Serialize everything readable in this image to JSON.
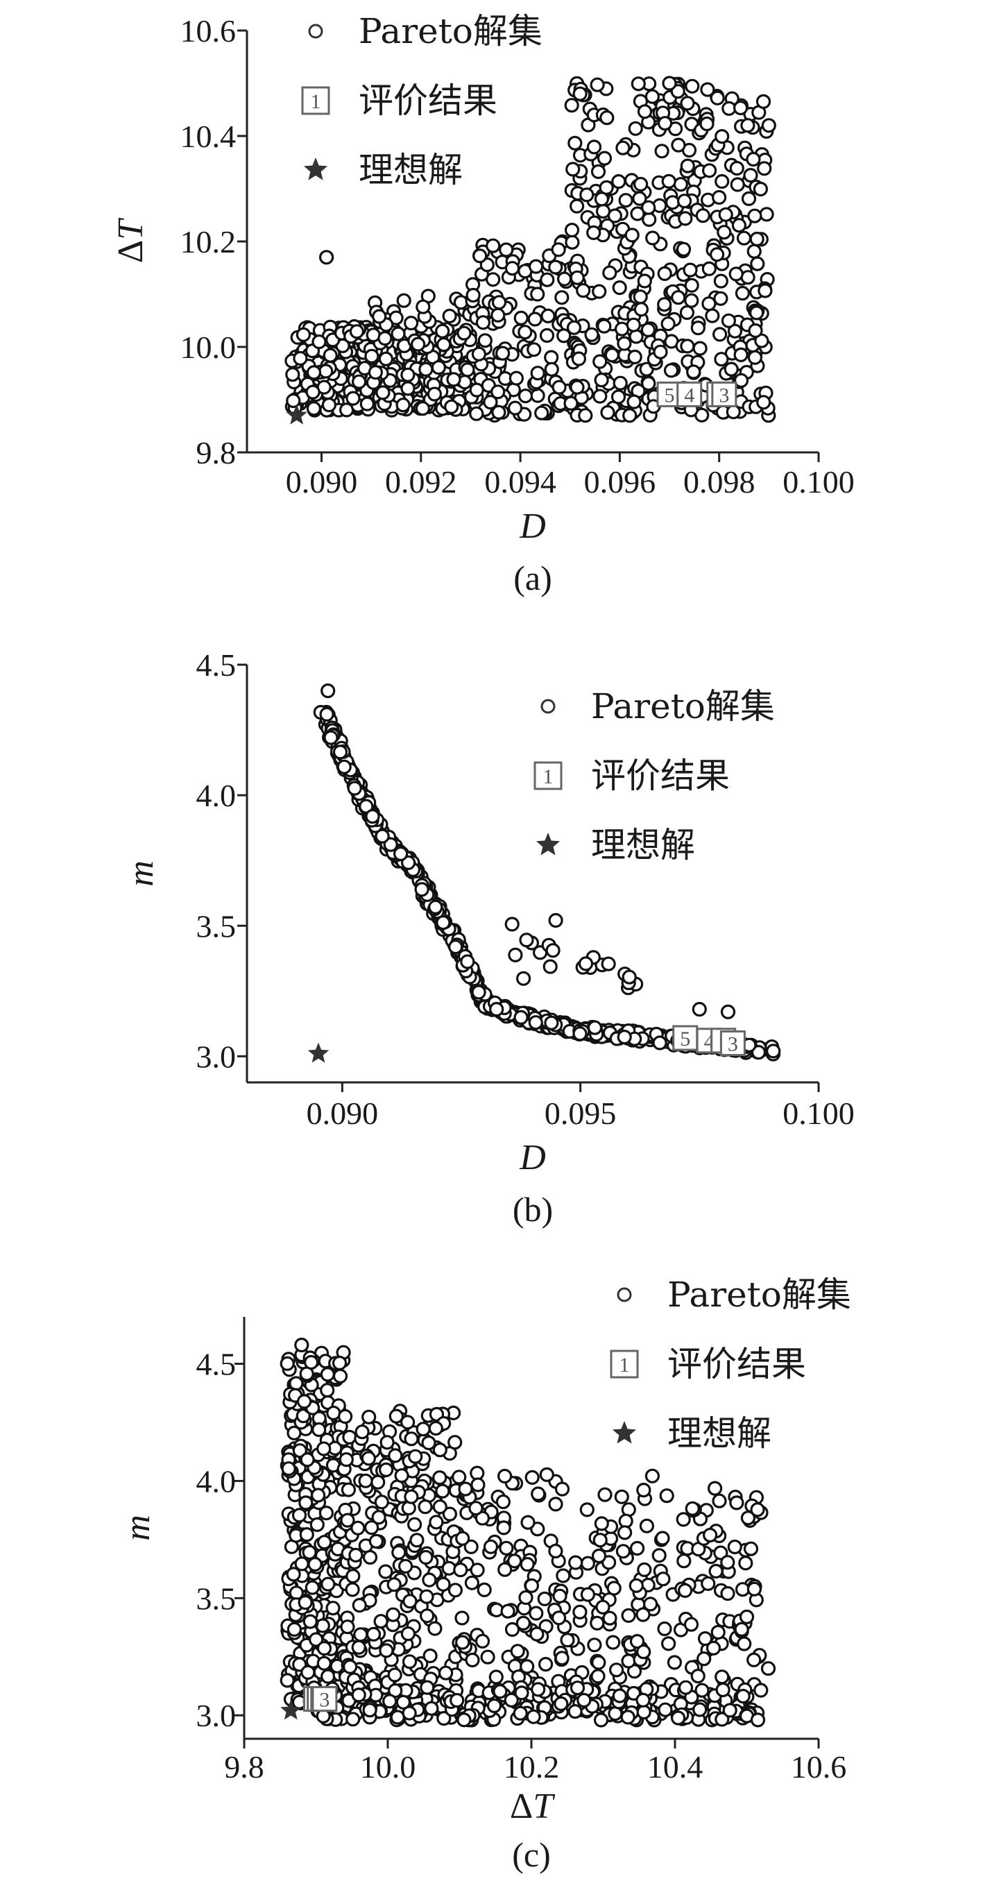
{
  "legend": {
    "pareto": "Pareto解集",
    "evaluation": "评价结果",
    "evaluation_marker": "1",
    "ideal": "理想解"
  },
  "chart_data": [
    {
      "type": "scatter",
      "caption": "(a)",
      "xlabel": "D",
      "ylabel": "ΔT",
      "xlim": [
        0.0885,
        0.1
      ],
      "ylim": [
        9.8,
        10.6
      ],
      "xticks": [
        "0.090",
        "0.092",
        "0.094",
        "0.096",
        "0.098",
        "0.100"
      ],
      "yticks": [
        "9.8",
        "10.0",
        "10.2",
        "10.4",
        "10.6"
      ],
      "grid": false,
      "legend_position": "top-left",
      "series": [
        {
          "kind": "pareto",
          "clusters": [
            {
              "x": [
                0.0894,
                0.093
              ],
              "y": [
                9.88,
                10.04
              ],
              "n": 360
            },
            {
              "x": [
                0.0903,
                0.093
              ],
              "y": [
                10.0,
                10.1
              ],
              "n": 45
            },
            {
              "x": [
                0.093,
                0.095
              ],
              "y": [
                9.87,
                10.2
              ],
              "n": 140
            },
            {
              "x": [
                0.095,
                0.099
              ],
              "y": [
                9.87,
                10.5
              ],
              "n": 420
            }
          ],
          "points": [
            [
              0.0901,
              10.17
            ],
            [
              0.097,
              10.5
            ],
            [
              0.0952,
              10.48
            ],
            [
              0.099,
              10.42
            ],
            [
              0.0962,
              9.87
            ]
          ]
        },
        {
          "kind": "evaluation",
          "points": [
            {
              "label": "5",
              "x": 0.097,
              "y": 9.91
            },
            {
              "label": "4",
              "x": 0.0974,
              "y": 9.91
            },
            {
              "label": "1",
              "x": 0.098,
              "y": 9.91
            },
            {
              "label": "3",
              "x": 0.0981,
              "y": 9.91
            }
          ]
        },
        {
          "kind": "ideal",
          "points": [
            {
              "x": 0.0895,
              "y": 9.87
            }
          ]
        }
      ]
    },
    {
      "type": "scatter",
      "caption": "(b)",
      "xlabel": "D",
      "ylabel": "m",
      "xlim": [
        0.088,
        0.1
      ],
      "ylim": [
        2.9,
        4.5
      ],
      "xticks": [
        "0.090",
        "0.095",
        "0.100"
      ],
      "yticks": [
        "3.0",
        "3.5",
        "4.0",
        "4.5"
      ],
      "grid": false,
      "legend_position": "top-right",
      "series": [
        {
          "kind": "pareto",
          "curve": [
            [
              0.0896,
              4.32
            ],
            [
              0.09,
              4.15
            ],
            [
              0.0905,
              3.96
            ],
            [
              0.091,
              3.8
            ],
            [
              0.0915,
              3.72
            ],
            [
              0.092,
              3.55
            ],
            [
              0.0925,
              3.4
            ],
            [
              0.093,
              3.2
            ],
            [
              0.094,
              3.14
            ],
            [
              0.095,
              3.1
            ],
            [
              0.096,
              3.08
            ],
            [
              0.097,
              3.06
            ],
            [
              0.098,
              3.04
            ],
            [
              0.099,
              3.02
            ]
          ],
          "n": 640,
          "extra_clusters": [
            {
              "x": [
                0.0935,
                0.0945
              ],
              "y": [
                3.27,
                3.55
              ],
              "n": 10
            },
            {
              "x": [
                0.095,
                0.0956
              ],
              "y": [
                3.32,
                3.38
              ],
              "n": 6
            },
            {
              "x": [
                0.0958,
                0.0962
              ],
              "y": [
                3.25,
                3.32
              ],
              "n": 6
            }
          ],
          "points": [
            [
              0.0897,
              4.4
            ],
            [
              0.0975,
              3.18
            ],
            [
              0.0981,
              3.17
            ]
          ]
        },
        {
          "kind": "evaluation",
          "points": [
            {
              "label": "5",
              "x": 0.0972,
              "y": 3.07
            },
            {
              "label": "4",
              "x": 0.0977,
              "y": 3.06
            },
            {
              "label": "1",
              "x": 0.098,
              "y": 3.06
            },
            {
              "label": "3",
              "x": 0.0982,
              "y": 3.05
            }
          ]
        },
        {
          "kind": "ideal",
          "points": [
            {
              "x": 0.0895,
              "y": 3.01
            }
          ]
        }
      ]
    },
    {
      "type": "scatter",
      "caption": "(c)",
      "xlabel": "ΔT",
      "ylabel": "m",
      "xlim": [
        9.8,
        10.6
      ],
      "ylim": [
        2.9,
        4.7
      ],
      "xticks": [
        "9.8",
        "10.0",
        "10.2",
        "10.4",
        "10.6"
      ],
      "yticks": [
        "3.0",
        "3.5",
        "4.0",
        "4.5"
      ],
      "grid": false,
      "legend_position": "top-right",
      "series": [
        {
          "kind": "pareto",
          "clusters": [
            {
              "x": [
                9.86,
                9.94
              ],
              "y": [
                3.05,
                4.55
              ],
              "n": 330
            },
            {
              "x": [
                9.94,
                10.1
              ],
              "y": [
                3.02,
                4.3
              ],
              "n": 280
            },
            {
              "x": [
                10.1,
                10.52
              ],
              "y": [
                3.0,
                4.05
              ],
              "n": 330
            },
            {
              "x": [
                9.9,
                10.52
              ],
              "y": [
                2.98,
                3.12
              ],
              "n": 230
            }
          ],
          "points": [
            [
              9.88,
              4.58
            ],
            [
              10.53,
              3.2
            ],
            [
              10.5,
              3.42
            ]
          ]
        },
        {
          "kind": "evaluation",
          "points": [
            {
              "label": "5",
              "x": 9.9,
              "y": 3.07
            },
            {
              "label": "4",
              "x": 9.905,
              "y": 3.07
            },
            {
              "label": "1",
              "x": 9.91,
              "y": 3.07
            },
            {
              "label": "3",
              "x": 9.912,
              "y": 3.07
            }
          ]
        },
        {
          "kind": "ideal",
          "points": [
            {
              "x": 9.865,
              "y": 3.02
            }
          ]
        }
      ]
    }
  ]
}
